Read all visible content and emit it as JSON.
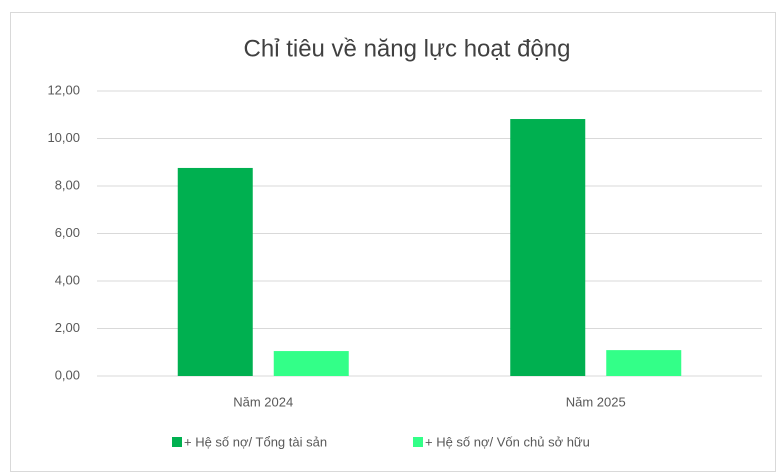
{
  "chart_data": {
    "type": "bar",
    "title": "Chỉ tiêu về năng lực hoạt động",
    "categories": [
      "Năm 2024",
      "Năm 2025"
    ],
    "series": [
      {
        "name": "+ Hệ số nợ/ Tổng tài sản",
        "color": "#00b050",
        "values": [
          8.76,
          10.82
        ]
      },
      {
        "name": "+ Hệ số nợ/ Vốn chủ sở hữu",
        "color": "#33ff88",
        "values": [
          1.05,
          1.09
        ]
      }
    ],
    "ylim": [
      0,
      12
    ],
    "yticks": [
      {
        "value": 0,
        "label": "0,00"
      },
      {
        "value": 2,
        "label": "2,00"
      },
      {
        "value": 4,
        "label": "4,00"
      },
      {
        "value": 6,
        "label": "6,00"
      },
      {
        "value": 8,
        "label": "8,00"
      },
      {
        "value": 10,
        "label": "10,00"
      },
      {
        "value": 12,
        "label": "12,00"
      }
    ],
    "grid": true,
    "legend": "bottom"
  }
}
